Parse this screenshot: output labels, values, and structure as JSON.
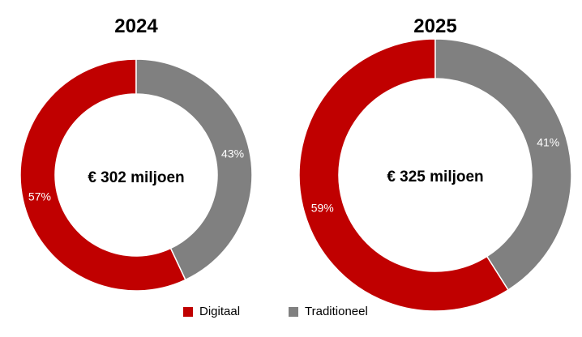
{
  "chart_data": [
    {
      "type": "pie",
      "title": "2024",
      "center_label": "€ 302 miljoen",
      "categories": [
        "Digitaal",
        "Traditioneel"
      ],
      "values": [
        57,
        43
      ],
      "labels": [
        "57%",
        "43%"
      ],
      "colors": [
        "#c00000",
        "#808080"
      ]
    },
    {
      "type": "pie",
      "title": "2025",
      "center_label": "€ 325 miljoen",
      "categories": [
        "Digitaal",
        "Traditioneel"
      ],
      "values": [
        59,
        41
      ],
      "labels": [
        "59%",
        "41%"
      ],
      "colors": [
        "#c00000",
        "#808080"
      ]
    }
  ],
  "legend": [
    {
      "label": "Digitaal",
      "color": "#c00000"
    },
    {
      "label": "Traditioneel",
      "color": "#808080"
    }
  ]
}
